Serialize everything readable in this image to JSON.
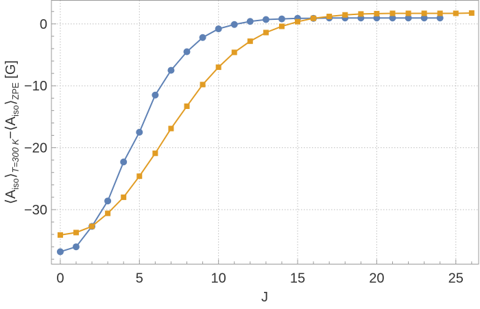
{
  "chart_data": {
    "type": "line",
    "title": "",
    "xlabel": "J",
    "ylabel": {
      "main_left": "⟨A",
      "sub1": "iso",
      "mid": "⟩",
      "sub2": "T=300 K",
      "minus": "−⟨A",
      "sub3": "iso",
      "mid2": "⟩",
      "sub4": "ZPE",
      "unit": " [G]"
    },
    "xlim": [
      -0.56,
      26.44
    ],
    "ylim": [
      -38.8,
      3.8
    ],
    "xticks": [
      0,
      5,
      10,
      15,
      20,
      25
    ],
    "yticks": [
      0,
      -10,
      -20,
      -30
    ],
    "ytick_labels": [
      "0",
      "−10",
      "−20",
      "−30"
    ],
    "grid": true,
    "series": [
      {
        "marker": "circle",
        "color": "#5e81b5",
        "x": [
          0,
          1,
          2,
          3,
          4,
          5,
          6,
          7,
          8,
          9,
          10,
          11,
          12,
          13,
          14,
          15,
          16,
          17,
          18,
          19,
          20,
          21,
          22,
          23,
          24
        ],
        "y": [
          -36.8,
          -36.0,
          -32.7,
          -28.6,
          -22.3,
          -17.5,
          -11.5,
          -7.5,
          -4.5,
          -2.2,
          -0.8,
          -0.1,
          0.4,
          0.7,
          0.8,
          0.9,
          0.9,
          0.95,
          0.95,
          0.95,
          0.95,
          0.95,
          0.95,
          0.95,
          0.95
        ]
      },
      {
        "marker": "square",
        "color": "#e19c24",
        "x": [
          0,
          1,
          2,
          3,
          4,
          5,
          6,
          7,
          8,
          9,
          10,
          11,
          12,
          13,
          14,
          15,
          16,
          17,
          18,
          19,
          20,
          21,
          22,
          23,
          24,
          25,
          26
        ],
        "y": [
          -34.1,
          -33.7,
          -32.7,
          -30.6,
          -28.0,
          -24.6,
          -20.9,
          -16.9,
          -13.3,
          -9.8,
          -7.0,
          -4.6,
          -2.8,
          -1.4,
          -0.4,
          0.35,
          0.9,
          1.2,
          1.45,
          1.6,
          1.65,
          1.7,
          1.7,
          1.7,
          1.7,
          1.7,
          1.75
        ]
      }
    ]
  }
}
